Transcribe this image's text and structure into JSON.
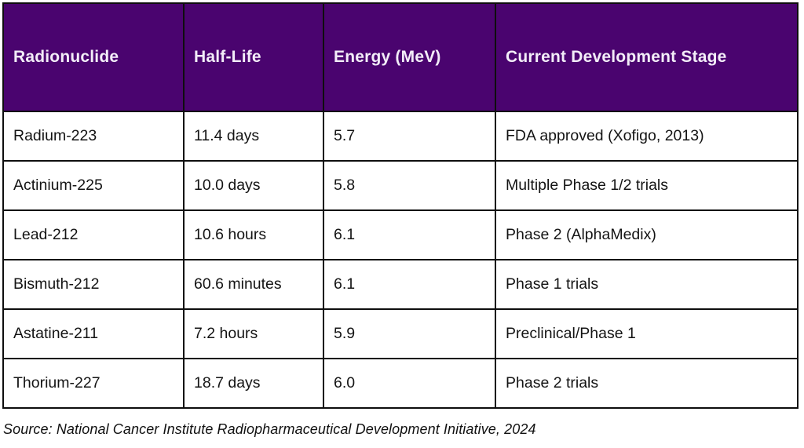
{
  "chart_data": {
    "type": "table",
    "columns": [
      "Radionuclide",
      "Half-Life",
      "Energy (MeV)",
      "Current Development Stage"
    ],
    "rows": [
      [
        "Radium-223",
        "11.4 days",
        "5.7",
        "FDA approved (Xofigo, 2013)"
      ],
      [
        "Actinium-225",
        "10.0 days",
        "5.8",
        "Multiple Phase 1/2 trials"
      ],
      [
        "Lead-212",
        "10.6 hours",
        "6.1",
        "Phase 2 (AlphaMedix)"
      ],
      [
        "Bismuth-212",
        "60.6 minutes",
        "6.1",
        "Phase 1 trials"
      ],
      [
        "Astatine-211",
        "7.2 hours",
        "5.9",
        "Preclinical/Phase 1"
      ],
      [
        "Thorium-227",
        "18.7 days",
        "6.0",
        "Phase 2 trials"
      ]
    ],
    "source_note": "Source: National Cancer Institute Radiopharmaceutical Development Initiative, 2024"
  },
  "colors": {
    "header_bg": "#4A046F",
    "header_text": "#F3EDF8",
    "border": "#0E0E0E",
    "body_text": "#141414",
    "page_bg": "#FFFFFF"
  }
}
